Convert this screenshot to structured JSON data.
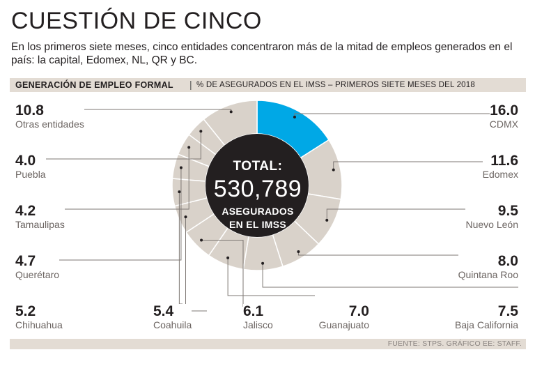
{
  "title": "CUESTIÓN DE CINCO",
  "subtitle": "En los primeros siete meses, cinco entidades concentraron más de la mitad de empleos generados en el país: la capital, Edomex, NL, QR y BC.",
  "header_bar": {
    "title": "GENERACIÓN DE EMPLEO FORMAL",
    "separator": "|",
    "subtitle": "% DE ASEGURADOS EN EL IMSS – PRIMEROS SIETE MESES DEL 2018"
  },
  "center": {
    "line1": "TOTAL:",
    "value": "530,789",
    "line3": "ASEGURADOS",
    "line4": "EN EL IMSS"
  },
  "source": "FUENTE: STPS. GRÁFICO EE: STAFF.",
  "colors": {
    "highlight": "#00a8e6",
    "segment": "#d9d2ca",
    "hole": "#231f20",
    "leader": "#231f20"
  },
  "chart_data": {
    "type": "pie",
    "variant": "donut",
    "title": "GENERACIÓN DE EMPLEO FORMAL",
    "unit": "%",
    "categories": [
      "CDMX",
      "Edomex",
      "Nuevo León",
      "Quintana Roo",
      "Baja California",
      "Guanajuato",
      "Jalisco",
      "Coahuila",
      "Chihuahua",
      "Querétaro",
      "Tamaulipas",
      "Puebla",
      "Otras entidades"
    ],
    "values": [
      16.0,
      11.6,
      9.5,
      8.0,
      7.5,
      7.0,
      6.1,
      5.4,
      5.2,
      4.7,
      4.2,
      4.0,
      10.8
    ],
    "value_labels": [
      "16.0",
      "11.6",
      "9.5",
      "8.0",
      "7.5",
      "7.0",
      "6.1",
      "5.4",
      "5.2",
      "4.7",
      "4.2",
      "4.0",
      "10.8"
    ],
    "highlight": "CDMX"
  }
}
